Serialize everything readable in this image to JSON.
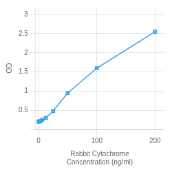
{
  "chart_data": {
    "type": "line",
    "x": [
      0,
      1.5625,
      3.125,
      6.25,
      12.5,
      25,
      50,
      100,
      200
    ],
    "values": [
      0.2,
      0.21,
      0.22,
      0.25,
      0.3,
      0.48,
      0.95,
      1.6,
      2.55
    ],
    "marker": "square",
    "xlabel": "Rabbit Cytochrome\nConcentration (ng/ml)",
    "ylabel": "OD",
    "xlim": [
      -5,
      215
    ],
    "xticks": [
      0,
      100,
      200
    ],
    "ylim": [
      0.0,
      3.2
    ],
    "yticks": [
      {
        "value": 0,
        "label": null
      },
      0.5,
      1,
      1.5,
      2,
      2.5,
      3
    ],
    "grid": true
  }
}
